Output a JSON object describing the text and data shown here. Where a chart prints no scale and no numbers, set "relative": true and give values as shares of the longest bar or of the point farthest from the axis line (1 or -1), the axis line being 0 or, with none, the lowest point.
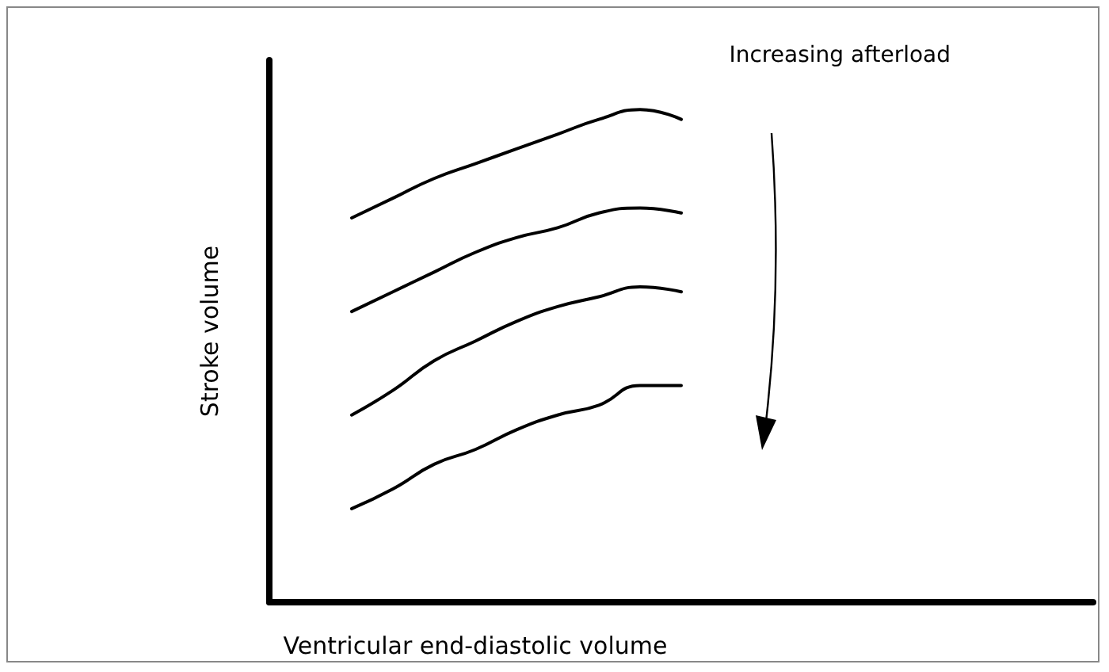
{
  "chart_data": {
    "type": "line",
    "relative": true,
    "xlabel": "Ventricular end-diastolic volume",
    "ylabel": "Stroke volume",
    "annotations": [
      "Increasing afterload"
    ],
    "marker": "none",
    "line_style": "solid",
    "categories": [
      null,
      null,
      null,
      null,
      null,
      null,
      null,
      null,
      null,
      null,
      null,
      null,
      null,
      null,
      null,
      null,
      null,
      null,
      null,
      null,
      null
    ],
    "series": [
      {
        "color": "#000000",
        "values": [
          null,
          null,
          0.78,
          0.82,
          0.86,
          0.89,
          0.92,
          0.95,
          0.98,
          1.0,
          0.98,
          null,
          null,
          null,
          null,
          null,
          null,
          null,
          null,
          null,
          null
        ]
      },
      {
        "color": "#000000",
        "values": [
          null,
          null,
          0.59,
          0.63,
          0.67,
          0.71,
          0.74,
          0.76,
          0.79,
          0.8,
          0.79,
          null,
          null,
          null,
          null,
          null,
          null,
          null,
          null,
          null,
          null
        ]
      },
      {
        "color": "#000000",
        "values": [
          null,
          null,
          0.38,
          0.43,
          0.49,
          0.53,
          0.57,
          0.6,
          0.62,
          0.64,
          0.63,
          null,
          null,
          null,
          null,
          null,
          null,
          null,
          null,
          null,
          null
        ]
      },
      {
        "color": "#000000",
        "values": [
          null,
          null,
          0.19,
          0.23,
          0.28,
          0.31,
          0.35,
          0.38,
          0.4,
          0.44,
          0.44,
          null,
          null,
          null,
          null,
          null,
          null,
          null,
          null,
          null,
          null
        ]
      }
    ]
  }
}
